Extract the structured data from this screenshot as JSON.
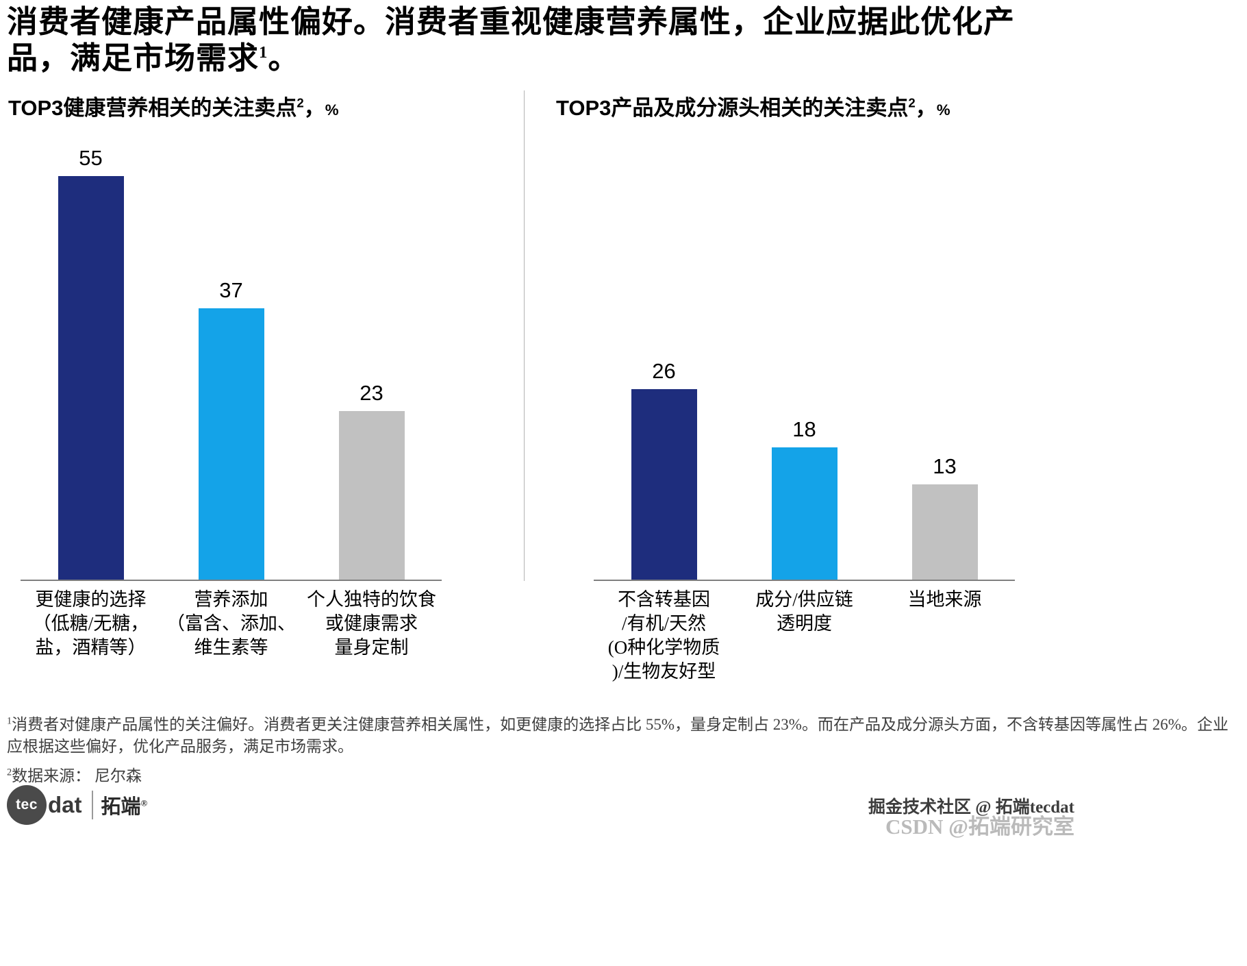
{
  "header": {
    "title": "消费者健康产品属性偏好。消费者重视健康营养属性，企业应据此优化产品，满足市场需求",
    "title_sup": "1",
    "title_suffix": "。"
  },
  "charts": [
    {
      "title": "TOP3健康营养相关的关注卖点",
      "sup": "2",
      "comma": "，",
      "unit": "%"
    },
    {
      "title": "TOP3产品及成分源头相关的关注卖点",
      "sup": "2",
      "comma": "，",
      "unit": "%"
    }
  ],
  "chart_data": [
    {
      "type": "bar",
      "title": "TOP3健康营养相关的关注卖点²，%",
      "categories": [
        "更健康的选择\n（低糖/无糖，\n盐，酒精等）",
        "营养添加\n（富含、添加、\n维生素等",
        "个人独特的饮食\n或健康需求\n量身定制"
      ],
      "values": [
        55,
        37,
        23
      ],
      "bar_colors": [
        "#1e2d7d",
        "#14a3e8",
        "#c1c1c1"
      ],
      "xlabel": "",
      "ylabel": "%",
      "ylim": [
        0,
        60
      ],
      "grid": false,
      "legend": "none"
    },
    {
      "type": "bar",
      "title": "TOP3产品及成分源头相关的关注卖点²，%",
      "categories": [
        "不含转基因\n/有机/天然\n(O种化学物质\n)/生物友好型",
        "成分/供应链\n透明度",
        "当地来源"
      ],
      "values": [
        26,
        18,
        13
      ],
      "bar_colors": [
        "#1e2d7d",
        "#14a3e8",
        "#c1c1c1"
      ],
      "xlabel": "",
      "ylabel": "%",
      "ylim": [
        0,
        60
      ],
      "grid": false,
      "legend": "none"
    }
  ],
  "footnotes": {
    "note1_sup": "1",
    "note1": "消费者对健康产品属性的关注偏好。消费者更关注健康营养相关属性，如更健康的选择占比 55%，量身定制占 23%。而在产品及成分源头方面，不含转基因等属性占 26%。企业应根据这些偏好，优化产品服务，满足市场需求。",
    "note2_sup": "2",
    "note2": "数据来源： 尼尔森"
  },
  "branding": {
    "logo_tec": "tec",
    "logo_dat": "dat",
    "logo_cn": "拓端",
    "logo_reg": "®"
  },
  "watermarks": {
    "line1": "掘金技术社区 @ 拓端tecdat",
    "line2": "CSDN @拓端研究室"
  },
  "colors": {
    "navy": "#1e2d7d",
    "light_blue": "#14a3e8",
    "gray": "#c1c1c1",
    "axis": "#7f7f7f"
  }
}
